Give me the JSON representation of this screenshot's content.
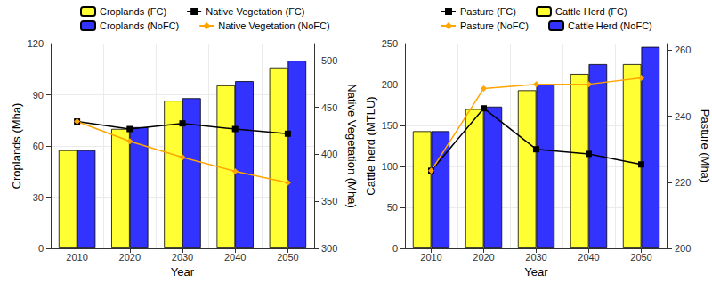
{
  "chart_data": [
    {
      "type": "bar",
      "categories": [
        "2010",
        "2020",
        "2030",
        "2040",
        "2050"
      ],
      "x_label": "Year",
      "y_label": "Croplands (Mha)",
      "y2_label": "Native Vegetation (Mha)",
      "ylim": [
        0,
        120
      ],
      "yticks": [
        0,
        30,
        60,
        90,
        120
      ],
      "y2lim": [
        300,
        518
      ],
      "y2ticks": [
        300,
        350,
        400,
        450,
        500
      ],
      "grid": true,
      "legend": "top",
      "series": [
        {
          "name": "Croplands (FC)",
          "type": "bar",
          "color": "#ffff33",
          "values": [
            57.5,
            70,
            86.5,
            95.5,
            106
          ]
        },
        {
          "name": "Croplands (NoFC)",
          "type": "bar",
          "color": "#3333ff",
          "values": [
            57.5,
            71,
            88,
            98,
            110
          ]
        },
        {
          "name": "Native Vegetation (FC)",
          "type": "line",
          "axis": "y2",
          "color": "#000000",
          "marker": "square",
          "values": [
            435,
            427,
            433,
            427,
            422
          ]
        },
        {
          "name": "Native Vegetation (NoFC)",
          "type": "line",
          "axis": "y2",
          "color": "#ffa500",
          "marker": "diamond",
          "values": [
            435,
            414,
            397,
            382,
            370
          ]
        }
      ]
    },
    {
      "type": "bar",
      "categories": [
        "2010",
        "2020",
        "2030",
        "2040",
        "2050"
      ],
      "x_label": "Year",
      "y_label": "Cattle herd (MTLU)",
      "y2_label": "Pasture (Mha)",
      "ylim": [
        0,
        250
      ],
      "yticks": [
        0,
        50,
        100,
        150,
        200,
        250
      ],
      "y2lim": [
        200,
        262
      ],
      "y2ticks": [
        200,
        220,
        240,
        260
      ],
      "grid": true,
      "legend": "top",
      "series": [
        {
          "name": "Pasture (FC)",
          "type": "line",
          "axis": "y2",
          "color": "#000000",
          "marker": "square",
          "values": [
            223.5,
            242.4,
            230,
            228.6,
            225.4
          ]
        },
        {
          "name": "Pasture (NoFC)",
          "type": "line",
          "axis": "y2",
          "color": "#ffa500",
          "marker": "diamond",
          "values": [
            223.5,
            248.4,
            249.7,
            249.7,
            251.6
          ]
        },
        {
          "name": "Cattle Herd (FC)",
          "type": "bar",
          "color": "#ffff33",
          "values": [
            143,
            170,
            193,
            213,
            225
          ]
        },
        {
          "name": "Cattle Herd (NoFC)",
          "type": "bar",
          "color": "#3333ff",
          "values": [
            143,
            173,
            200,
            225,
            246
          ]
        }
      ]
    }
  ]
}
